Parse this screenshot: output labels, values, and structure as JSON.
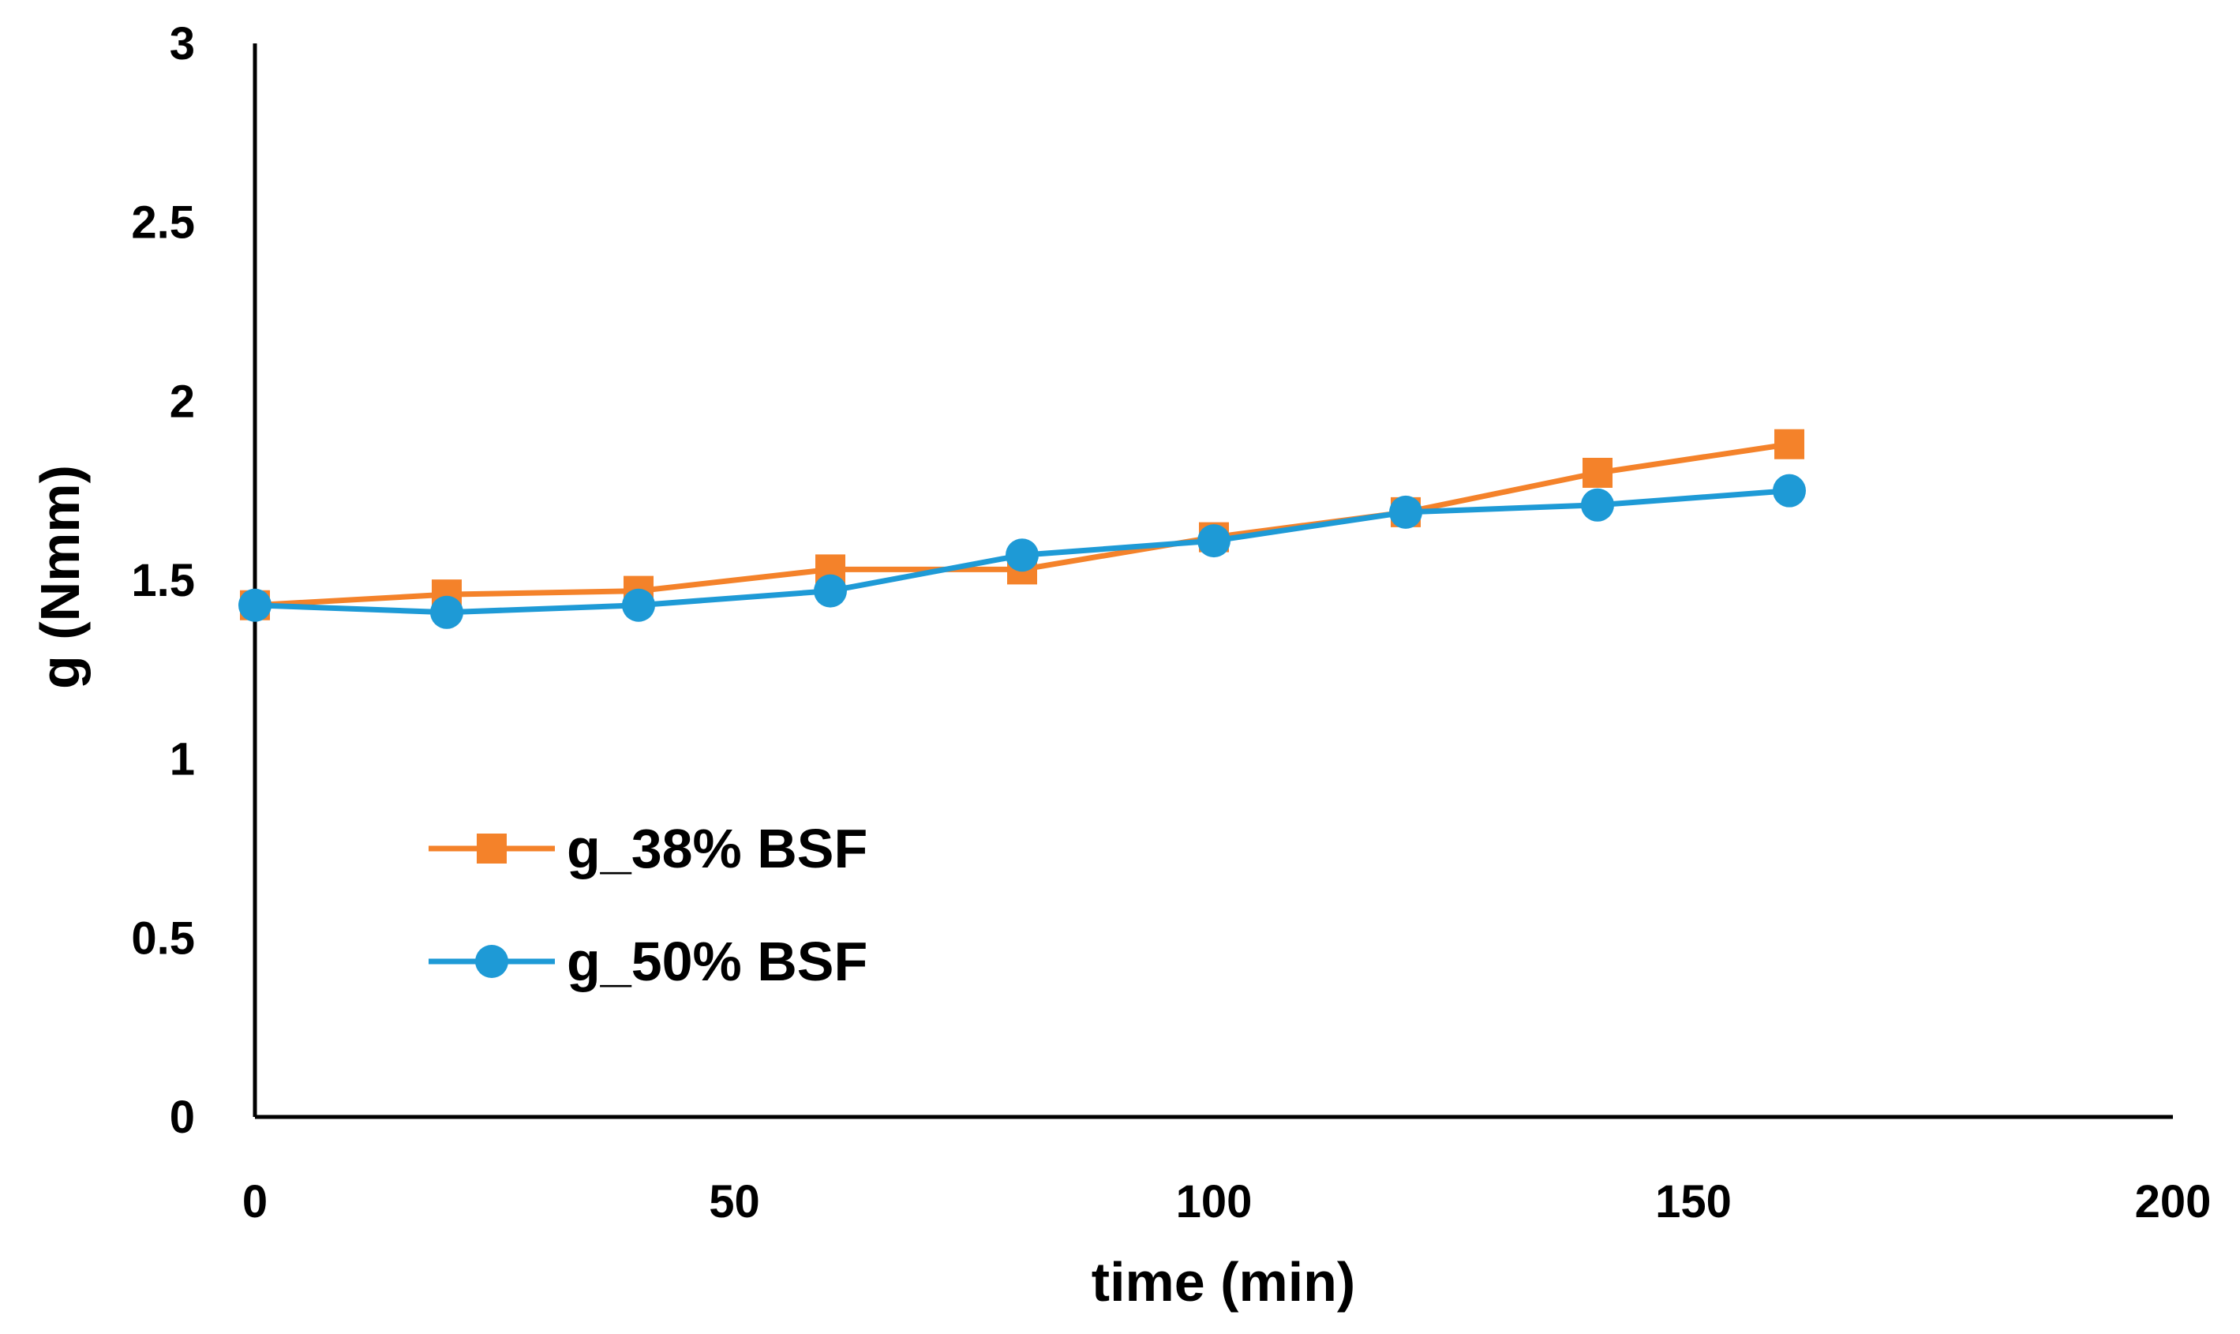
{
  "chart_data": {
    "type": "line",
    "title": "",
    "xlabel": "time (min)",
    "ylabel": "g (Nmm)",
    "xlim": [
      0,
      200
    ],
    "ylim": [
      0,
      3
    ],
    "xticks": [
      0,
      50,
      100,
      150,
      200
    ],
    "xtick_labels": [
      "0",
      "50",
      "100",
      "150",
      "200"
    ],
    "yticks": [
      0,
      0.5,
      1,
      1.5,
      2,
      2.5,
      3
    ],
    "ytick_labels": [
      "0",
      "0.5",
      "1",
      "1.5",
      "2",
      "2.5",
      "3"
    ],
    "grid": false,
    "legend_position": "center-left",
    "series": [
      {
        "name": "g_38% BSF",
        "color": "#F4822A",
        "marker": "square",
        "x": [
          0,
          20,
          40,
          60,
          80,
          100,
          120,
          140,
          160
        ],
        "values": [
          1.43,
          1.46,
          1.47,
          1.53,
          1.53,
          1.62,
          1.69,
          1.8,
          1.88
        ]
      },
      {
        "name": "g_50% BSF",
        "color": "#1E9AD6",
        "marker": "circle",
        "x": [
          0,
          20,
          40,
          60,
          80,
          100,
          120,
          140,
          160
        ],
        "values": [
          1.43,
          1.41,
          1.43,
          1.47,
          1.57,
          1.61,
          1.69,
          1.71,
          1.75
        ]
      }
    ]
  }
}
